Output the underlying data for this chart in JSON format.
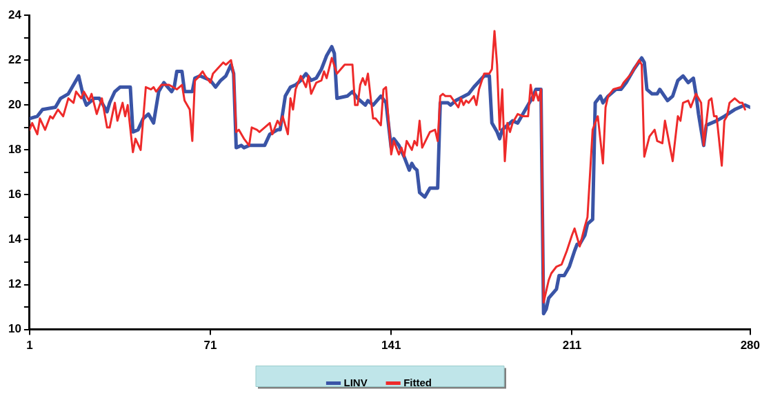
{
  "chart_data": {
    "type": "line",
    "xlim": [
      1,
      280
    ],
    "xticks": [
      1,
      71,
      141,
      211,
      280
    ],
    "ylim": [
      10,
      24
    ],
    "yticks": [
      10,
      {
        "value": 11,
        "label": null
      },
      12,
      {
        "value": 13,
        "label": null
      },
      14,
      {
        "value": 15,
        "label": null
      },
      16,
      {
        "value": 17,
        "label": null
      },
      18,
      {
        "value": 19,
        "label": null
      },
      20,
      {
        "value": 21,
        "label": null
      },
      22,
      {
        "value": 23,
        "label": null
      },
      24
    ],
    "grid": false,
    "legend": "bottom",
    "marker": "none",
    "line_style": "solid",
    "series": [
      {
        "name": "LINV",
        "color": "#3a54a6",
        "x": [
          1,
          4,
          6,
          11,
          13,
          16,
          19,
          20,
          22,
          23,
          26,
          28,
          31,
          32,
          34,
          36,
          40,
          41,
          43,
          45,
          47,
          49,
          51,
          53,
          56,
          57,
          58,
          60,
          61,
          64,
          65,
          67,
          71,
          73,
          75,
          77,
          79,
          80,
          81,
          83,
          84,
          86,
          92,
          94,
          97,
          98,
          100,
          102,
          104,
          106,
          108,
          110,
          112,
          114,
          116,
          118,
          119,
          120,
          124,
          126,
          128,
          131,
          132,
          134,
          137,
          139,
          141,
          142,
          144,
          146,
          148,
          149,
          150,
          151,
          152,
          154,
          156,
          159,
          160,
          163,
          164,
          166,
          171,
          173,
          177,
          179,
          180,
          182,
          183,
          184,
          188,
          190,
          192,
          196,
          197,
          199,
          200,
          201,
          202,
          205,
          206,
          208,
          210,
          212,
          213,
          214,
          216,
          217,
          219,
          220,
          222,
          223,
          225,
          228,
          230,
          232,
          235,
          238,
          239,
          240,
          242,
          244,
          245,
          248,
          250,
          252,
          254,
          256,
          258,
          259,
          260,
          262,
          263,
          267,
          270,
          274,
          278,
          280
        ],
        "values": [
          19.4,
          19.5,
          19.8,
          19.9,
          20.3,
          20.5,
          21.1,
          21.3,
          20.3,
          20.0,
          20.3,
          20.3,
          19.7,
          20.1,
          20.6,
          20.8,
          20.8,
          18.8,
          18.9,
          19.4,
          19.6,
          19.2,
          20.6,
          21.0,
          20.6,
          20.8,
          21.5,
          21.5,
          20.6,
          20.6,
          21.2,
          21.3,
          21.1,
          20.8,
          21.1,
          21.3,
          21.8,
          21.4,
          18.1,
          18.2,
          18.1,
          18.2,
          18.2,
          18.7,
          18.9,
          18.9,
          20.4,
          20.8,
          20.9,
          21.1,
          21.4,
          21.1,
          21.2,
          21.6,
          22.2,
          22.6,
          22.3,
          20.3,
          20.4,
          20.6,
          20.3,
          20.0,
          20.2,
          20.0,
          20.4,
          20.1,
          18.1,
          18.5,
          18.2,
          17.7,
          17.1,
          17.4,
          17.2,
          17.1,
          16.1,
          15.9,
          16.3,
          16.3,
          20.1,
          20.1,
          20.0,
          20.2,
          20.5,
          20.8,
          21.3,
          21.3,
          19.2,
          18.8,
          18.5,
          18.9,
          19.3,
          19.2,
          19.6,
          20.4,
          20.7,
          20.7,
          10.7,
          10.9,
          11.4,
          11.8,
          12.4,
          12.4,
          12.8,
          13.5,
          13.8,
          13.8,
          14.2,
          14.7,
          14.9,
          20.1,
          20.4,
          20.1,
          20.4,
          20.7,
          20.7,
          21.0,
          21.6,
          22.1,
          21.9,
          20.7,
          20.5,
          20.5,
          20.7,
          20.2,
          20.4,
          21.1,
          21.3,
          21.0,
          21.2,
          20.5,
          19.6,
          18.2,
          19.1,
          19.3,
          19.5,
          19.8,
          20.0,
          19.9
        ]
      },
      {
        "name": "Fitted",
        "color": "#ee2a2a",
        "x": [
          1,
          2,
          4,
          5,
          7,
          9,
          10,
          12,
          14,
          16,
          18,
          19,
          21,
          22,
          24,
          25,
          27,
          29,
          31,
          32,
          34,
          35,
          37,
          38,
          39,
          41,
          42,
          44,
          46,
          48,
          49,
          50,
          52,
          55,
          58,
          60,
          61,
          63,
          64,
          65,
          66,
          68,
          69,
          71,
          72,
          76,
          77,
          79,
          80,
          81,
          82,
          84,
          86,
          87,
          89,
          90,
          94,
          95,
          97,
          98,
          99,
          101,
          102,
          103,
          104,
          106,
          108,
          109,
          110,
          112,
          114,
          115,
          116,
          118,
          120,
          123,
          126,
          127,
          128,
          129,
          130,
          131,
          132,
          134,
          135,
          137,
          138,
          139,
          141,
          142,
          144,
          145,
          146,
          147,
          149,
          150,
          151,
          152,
          153,
          156,
          158,
          159,
          160,
          161,
          162,
          164,
          167,
          168,
          169,
          170,
          171,
          173,
          174,
          175,
          177,
          179,
          180,
          181,
          182,
          183,
          184,
          185,
          186,
          187,
          188,
          190,
          192,
          194,
          195,
          196,
          197,
          198,
          199,
          200,
          202,
          203,
          205,
          207,
          209,
          211,
          212,
          214,
          216,
          217,
          219,
          221,
          223,
          224,
          225,
          227,
          230,
          231,
          234,
          236,
          237,
          238,
          239,
          241,
          243,
          244,
          246,
          247,
          250,
          252,
          253,
          254,
          256,
          257,
          259,
          261,
          262,
          264,
          265,
          266,
          267,
          269,
          270,
          271,
          272,
          274,
          276,
          277,
          278
        ],
        "values": [
          18.9,
          19.2,
          18.7,
          19.4,
          18.9,
          19.5,
          19.4,
          19.8,
          19.5,
          20.3,
          20.1,
          20.6,
          20.3,
          20.6,
          20.2,
          20.5,
          19.6,
          20.3,
          19.0,
          19.0,
          20.1,
          19.3,
          20.1,
          19.5,
          20.0,
          17.9,
          18.5,
          18.0,
          20.8,
          20.7,
          20.8,
          20.6,
          20.9,
          20.9,
          20.7,
          20.9,
          20.2,
          19.8,
          18.4,
          21.1,
          21.2,
          21.5,
          21.3,
          21.0,
          21.4,
          21.9,
          21.8,
          22.0,
          21.4,
          18.8,
          18.9,
          18.5,
          18.2,
          19.0,
          18.9,
          18.8,
          19.2,
          18.7,
          19.3,
          19.1,
          19.5,
          18.7,
          20.3,
          19.8,
          20.7,
          21.3,
          20.8,
          21.3,
          20.5,
          21.0,
          21.1,
          21.5,
          21.2,
          22.1,
          21.4,
          21.8,
          21.8,
          20.0,
          20.0,
          20.9,
          21.2,
          20.9,
          21.4,
          19.4,
          19.4,
          19.1,
          20.7,
          20.8,
          17.8,
          18.4,
          17.8,
          18.1,
          17.7,
          18.4,
          18.0,
          18.4,
          18.2,
          19.3,
          18.1,
          18.8,
          18.9,
          18.4,
          20.4,
          20.5,
          20.4,
          20.4,
          19.9,
          20.3,
          20.0,
          20.2,
          20.1,
          20.4,
          20.0,
          20.7,
          21.4,
          21.4,
          21.6,
          23.3,
          21.8,
          18.9,
          20.7,
          17.5,
          19.2,
          18.8,
          19.2,
          19.6,
          19.5,
          19.5,
          20.9,
          20.2,
          20.6,
          20.2,
          20.7,
          11.2,
          12.2,
          12.5,
          12.8,
          12.9,
          13.5,
          14.2,
          14.5,
          13.7,
          14.6,
          15.0,
          18.9,
          19.5,
          17.4,
          19.9,
          20.4,
          20.7,
          20.8,
          21.0,
          21.4,
          21.8,
          22.0,
          21.8,
          17.7,
          18.6,
          18.9,
          18.4,
          18.3,
          19.3,
          17.5,
          19.5,
          19.3,
          20.1,
          20.2,
          19.9,
          20.5,
          20.1,
          18.2,
          20.2,
          20.3,
          19.5,
          19.5,
          17.3,
          19.3,
          19.5,
          20.1,
          20.3,
          20.1,
          20.1,
          19.8
        ]
      }
    ]
  }
}
